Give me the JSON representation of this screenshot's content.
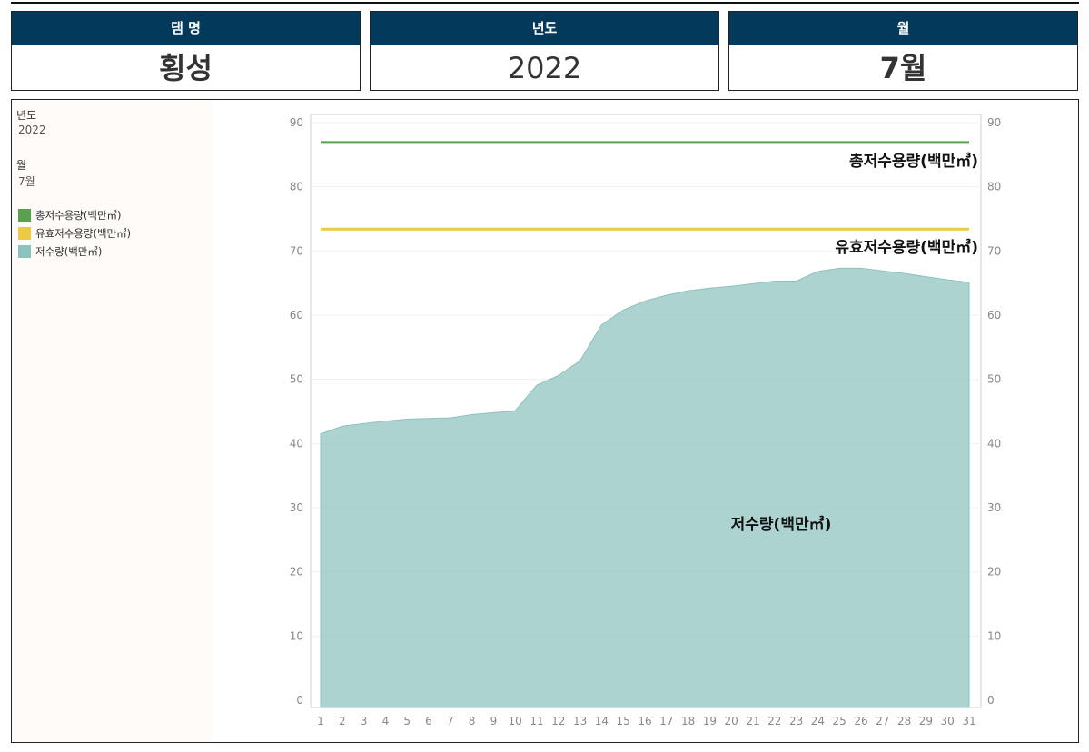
{
  "cards": [
    {
      "label": "댐 명",
      "value": "횡성"
    },
    {
      "label": "년도",
      "value": "2022"
    },
    {
      "label": "월",
      "value": "7월"
    }
  ],
  "filters": {
    "year_label": "년도",
    "year_value": "2022",
    "month_label": "월",
    "month_value": "7월"
  },
  "legend": [
    {
      "label": "총저수용량(백만㎥)",
      "color": "#59a14f"
    },
    {
      "label": "유효저수용량(백만㎥)",
      "color": "#edc948"
    },
    {
      "label": "저수량(백만㎥)",
      "color": "#8cc2be"
    }
  ],
  "chart_data": {
    "type": "area",
    "x": [
      1,
      2,
      3,
      4,
      5,
      6,
      7,
      8,
      9,
      10,
      11,
      12,
      13,
      14,
      15,
      16,
      17,
      18,
      19,
      20,
      21,
      22,
      23,
      24,
      25,
      26,
      27,
      28,
      29,
      30,
      31
    ],
    "ylim": [
      0,
      90
    ],
    "yticks": [
      0,
      10,
      20,
      30,
      40,
      50,
      60,
      70,
      80,
      90
    ],
    "series": [
      {
        "name": "총저수용량(백만㎥)",
        "kind": "line",
        "color": "#59a14f",
        "values": [
          86.9,
          86.9,
          86.9,
          86.9,
          86.9,
          86.9,
          86.9,
          86.9,
          86.9,
          86.9,
          86.9,
          86.9,
          86.9,
          86.9,
          86.9,
          86.9,
          86.9,
          86.9,
          86.9,
          86.9,
          86.9,
          86.9,
          86.9,
          86.9,
          86.9,
          86.9,
          86.9,
          86.9,
          86.9,
          86.9,
          86.9
        ]
      },
      {
        "name": "유효저수용량(백만㎥)",
        "kind": "line",
        "color": "#edc948",
        "values": [
          73.4,
          73.4,
          73.4,
          73.4,
          73.4,
          73.4,
          73.4,
          73.4,
          73.4,
          73.4,
          73.4,
          73.4,
          73.4,
          73.4,
          73.4,
          73.4,
          73.4,
          73.4,
          73.4,
          73.4,
          73.4,
          73.4,
          73.4,
          73.4,
          73.4,
          73.4,
          73.4,
          73.4,
          73.4,
          73.4,
          73.4
        ]
      },
      {
        "name": "저수량(백만㎥)",
        "kind": "area",
        "color": "#8cc2be",
        "values": [
          41.5,
          42.7,
          43.1,
          43.5,
          43.8,
          43.9,
          44.0,
          44.5,
          44.8,
          45.1,
          49.1,
          50.6,
          52.9,
          58.5,
          60.8,
          62.2,
          63.1,
          63.8,
          64.2,
          64.5,
          64.9,
          65.3,
          65.3,
          66.8,
          67.3,
          67.3,
          66.9,
          66.5,
          66.0,
          65.5,
          65.1
        ]
      }
    ],
    "line_labels": [
      {
        "text": "총저수용량(백만㎥)"
      },
      {
        "text": "유효저수용량(백만㎥)"
      },
      {
        "text": "저수량(백만㎥)"
      }
    ],
    "grid": true,
    "legend": "left"
  }
}
